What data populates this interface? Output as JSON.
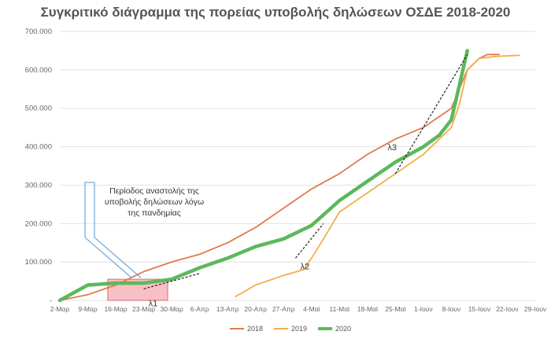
{
  "chart_data": {
    "type": "line",
    "title": "Συγκριτικό διάγραμμα της πορείας υποβολής δηλώσεων ΟΣΔΕ 2018-2020",
    "xlabel": "",
    "ylabel": "",
    "x_tick_labels": [
      "2-Μαρ",
      "9-Μαρ",
      "16-Μαρ",
      "23-Μαρ",
      "30-Μαρ",
      "6-Απρ",
      "13-Απρ",
      "20-Απρ",
      "27-Απρ",
      "4-Μαϊ",
      "11-Μαϊ",
      "18-Μαϊ",
      "25-Μαϊ",
      "1-Ιουν",
      "8-Ιουν",
      "15-Ιουν",
      "22-Ιουν",
      "29-Ιουν"
    ],
    "x_unit": "days since 2-Μαρ",
    "xlim": [
      0,
      119
    ],
    "ylim": [
      0,
      700000
    ],
    "y_ticks": [
      0,
      100000,
      200000,
      300000,
      400000,
      500000,
      600000,
      700000
    ],
    "y_tick_labels": [
      "-",
      "100.000",
      "200.000",
      "300.000",
      "400.000",
      "500.000",
      "600.000",
      "700.000"
    ],
    "grid": "horizontal",
    "legend_position": "bottom",
    "series": [
      {
        "name": "2018",
        "color": "#e07b4f",
        "x": [
          0,
          7,
          14,
          21,
          28,
          35,
          42,
          49,
          56,
          63,
          70,
          77,
          84,
          91,
          98,
          102,
          105,
          107,
          110
        ],
        "y": [
          0,
          15000,
          40000,
          75000,
          100000,
          120000,
          150000,
          190000,
          240000,
          290000,
          330000,
          380000,
          420000,
          450000,
          500000,
          600000,
          630000,
          640000,
          640000
        ]
      },
      {
        "name": "2019",
        "color": "#f0ae4a",
        "x": [
          44,
          49,
          56,
          61,
          63,
          66,
          70,
          77,
          84,
          91,
          98,
          100,
          102,
          105,
          109,
          115
        ],
        "y": [
          10000,
          40000,
          65000,
          80000,
          110000,
          160000,
          230000,
          280000,
          330000,
          380000,
          450000,
          510000,
          600000,
          630000,
          635000,
          638000
        ]
      },
      {
        "name": "2020",
        "color": "#5cb85c",
        "x": [
          0,
          7,
          14,
          21,
          28,
          35,
          42,
          49,
          56,
          63,
          70,
          77,
          84,
          91,
          95,
          98,
          102
        ],
        "y": [
          0,
          40000,
          45000,
          45000,
          55000,
          85000,
          110000,
          140000,
          160000,
          195000,
          260000,
          310000,
          360000,
          400000,
          430000,
          470000,
          650000
        ]
      }
    ],
    "trend_lines": [
      {
        "label": "λ1",
        "x": [
          21,
          35
        ],
        "y": [
          30000,
          70000
        ]
      },
      {
        "label": "λ2",
        "x": [
          59,
          66
        ],
        "y": [
          110000,
          200000
        ]
      },
      {
        "label": "λ3",
        "x": [
          84,
          102
        ],
        "y": [
          330000,
          640000
        ]
      }
    ],
    "annotation": {
      "text_lines": [
        "Περίοδος αναστολής της",
        "υποβολής δηλώσεων λόγω",
        "της πανδημίας"
      ],
      "highlight_x": [
        12,
        27
      ],
      "highlight_y": [
        0,
        55000
      ]
    }
  }
}
